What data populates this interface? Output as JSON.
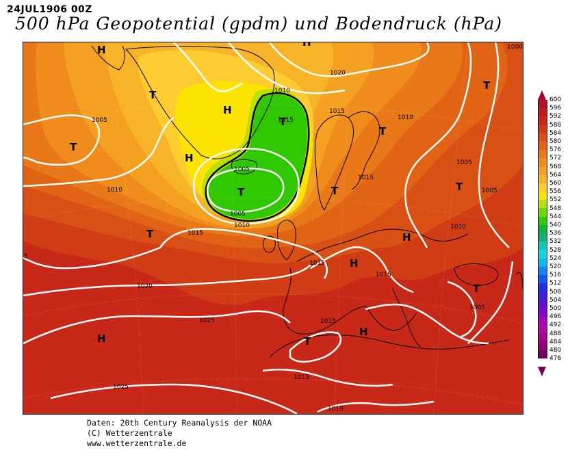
{
  "header": {
    "date": "24JUL1906 00Z",
    "title": "500 hPa Geopotential (gpdm) und Bodendruck (hPa)"
  },
  "map": {
    "pressure_systems": [
      {
        "symbol": "H",
        "label": "high-pressure-H"
      },
      {
        "symbol": "H",
        "label": "high-pressure-H"
      },
      {
        "symbol": "H",
        "label": "high-pressure-H"
      },
      {
        "symbol": "H",
        "label": "high-pressure-H"
      },
      {
        "symbol": "H",
        "label": "high-pressure-H"
      },
      {
        "symbol": "H",
        "label": "high-pressure-H"
      },
      {
        "symbol": "H",
        "label": "high-pressure-H"
      },
      {
        "symbol": "H",
        "label": "high-pressure-H"
      },
      {
        "symbol": "T",
        "label": "low-pressure-T"
      },
      {
        "symbol": "T",
        "label": "low-pressure-T"
      },
      {
        "symbol": "T",
        "label": "low-pressure-T"
      },
      {
        "symbol": "T",
        "label": "low-pressure-T"
      },
      {
        "symbol": "T",
        "label": "low-pressure-T"
      },
      {
        "symbol": "T",
        "label": "low-pressure-T"
      },
      {
        "symbol": "T",
        "label": "low-pressure-T"
      },
      {
        "symbol": "T",
        "label": "low-pressure-T"
      },
      {
        "symbol": "T",
        "label": "low-pressure-T"
      },
      {
        "symbol": "T",
        "label": "low-pressure-T"
      },
      {
        "symbol": "T",
        "label": "low-pressure-T"
      }
    ],
    "isobar_labels": [
      "1000",
      "1020",
      "1010",
      "1015",
      "1005",
      "1010",
      "1005",
      "1015",
      "1010",
      "1015",
      "1005",
      "1010",
      "1005",
      "1015",
      "1020",
      "1025",
      "1015",
      "1015",
      "1005",
      "1015",
      "1025",
      "1010",
      "5",
      "1005",
      "1010",
      "1015"
    ]
  },
  "legend": {
    "unit": "gpdm",
    "values": [
      "600",
      "596",
      "592",
      "588",
      "584",
      "580",
      "576",
      "572",
      "568",
      "564",
      "560",
      "556",
      "552",
      "548",
      "544",
      "540",
      "536",
      "532",
      "528",
      "524",
      "520",
      "516",
      "512",
      "508",
      "504",
      "500",
      "496",
      "492",
      "488",
      "484",
      "480",
      "476"
    ],
    "colors": [
      "#a8003c",
      "#b0102c",
      "#bc1c1c",
      "#c82818",
      "#d03c14",
      "#d85014",
      "#e06414",
      "#e87818",
      "#f08c1c",
      "#f4a020",
      "#f8b428",
      "#fccc30",
      "#fce400",
      "#b8e000",
      "#70d800",
      "#30c800",
      "#10b43c",
      "#10b078",
      "#10c8b0",
      "#10d8e0",
      "#10b8f0",
      "#1088f0",
      "#1058f0",
      "#2030e0",
      "#4020d8",
      "#6010d0",
      "#8008c8",
      "#a008b8",
      "#b008a8",
      "#a80090",
      "#900078",
      "#700060"
    ]
  },
  "credits": {
    "line1": "Daten: 20th Century Reanalysis der NOAA",
    "line2": "(C) Wetterzentrale",
    "line3": "www.wetterzentrale.de"
  }
}
